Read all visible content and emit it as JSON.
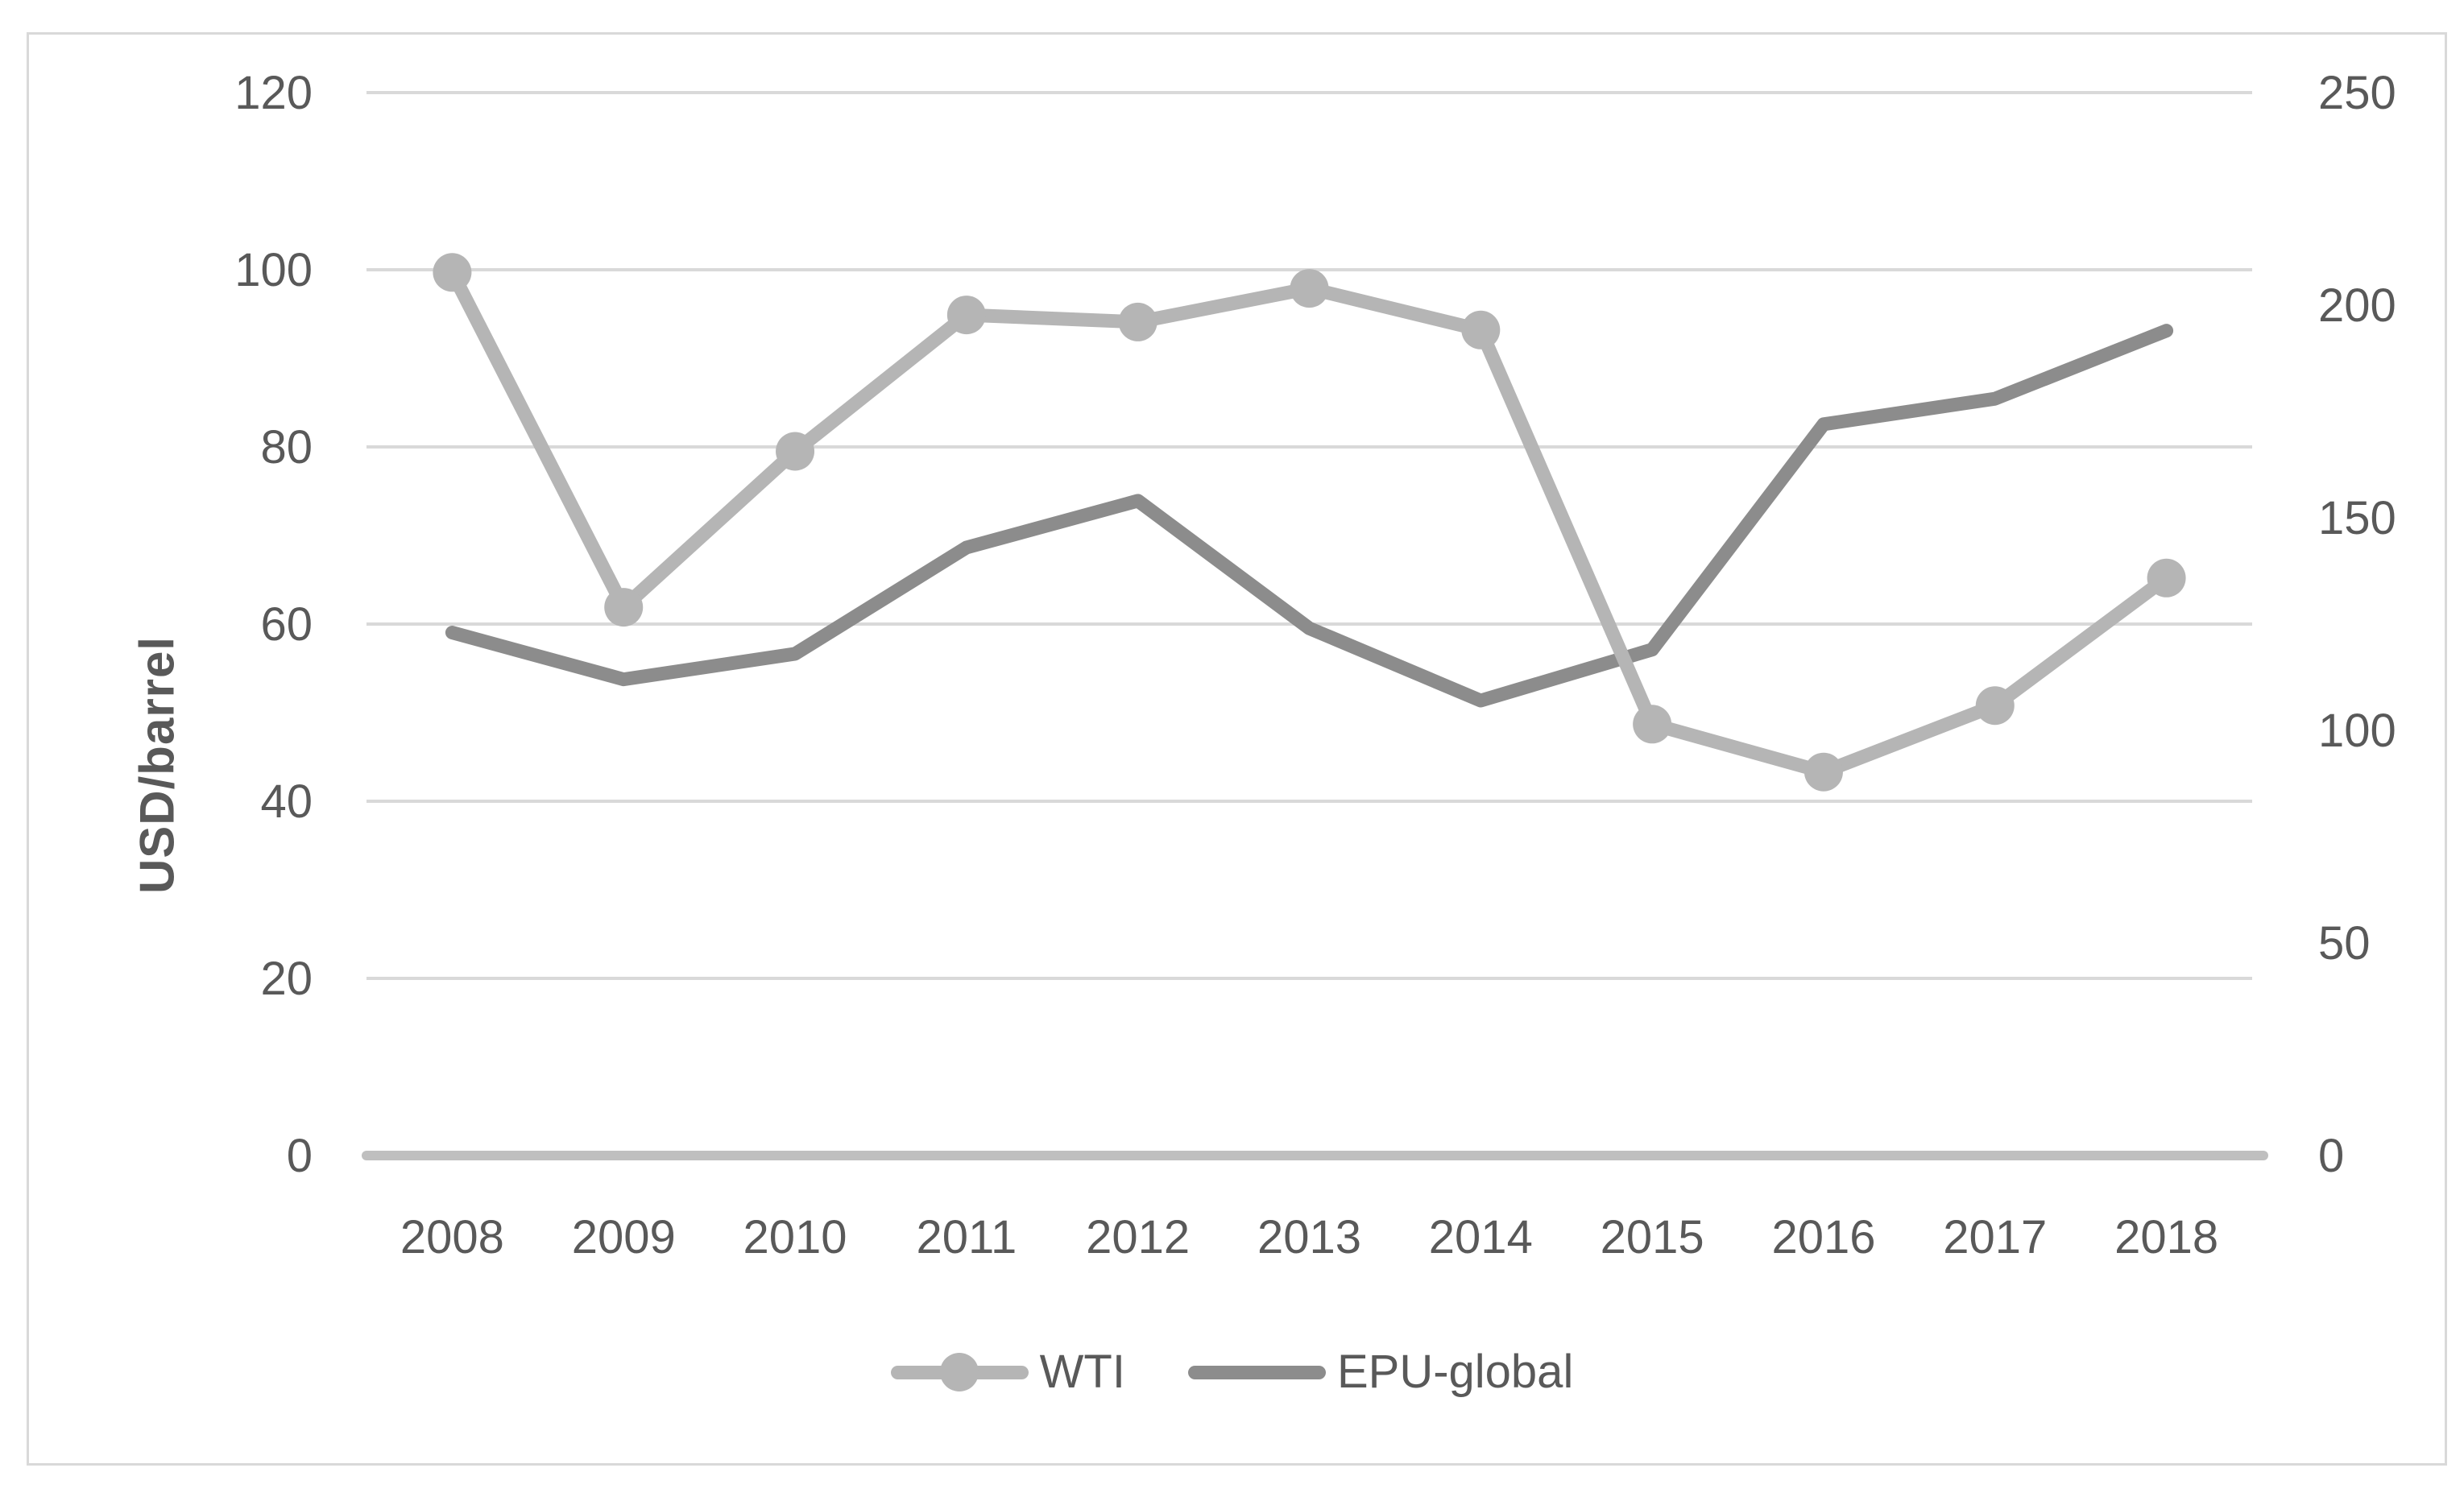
{
  "chart_data": {
    "type": "line",
    "title": "",
    "categories": [
      "2008",
      "2009",
      "2010",
      "2011",
      "2012",
      "2013",
      "2014",
      "2015",
      "2016",
      "2017",
      "2018"
    ],
    "series": [
      {
        "name": "WTI",
        "axis": "left",
        "color": "#b5b5b5",
        "marker": "circle",
        "values": [
          99.7,
          61.9,
          79.5,
          94.9,
          94.1,
          97.9,
          93.2,
          48.7,
          43.3,
          50.8,
          65.2
        ]
      },
      {
        "name": "EPU-global",
        "axis": "right",
        "color": "#8c8c8c",
        "marker": "none",
        "values": [
          123,
          112,
          118,
          143,
          154,
          124,
          107,
          119,
          172,
          178,
          194
        ]
      }
    ],
    "left_axis": {
      "label": "USD/barrel",
      "min": 0,
      "max": 120,
      "step": 20,
      "ticks": [
        0,
        20,
        40,
        60,
        80,
        100,
        120
      ]
    },
    "right_axis": {
      "label": "",
      "min": 0,
      "max": 250,
      "step": 50,
      "ticks": [
        0,
        50,
        100,
        150,
        200,
        250
      ]
    },
    "grid": true,
    "legend_position": "bottom",
    "style": {
      "gridline_color": "#d9d9d9",
      "axis_line_color": "#bfbfbf",
      "text_color": "#595959",
      "border_color": "#d9d9d9",
      "background": "#ffffff"
    }
  }
}
